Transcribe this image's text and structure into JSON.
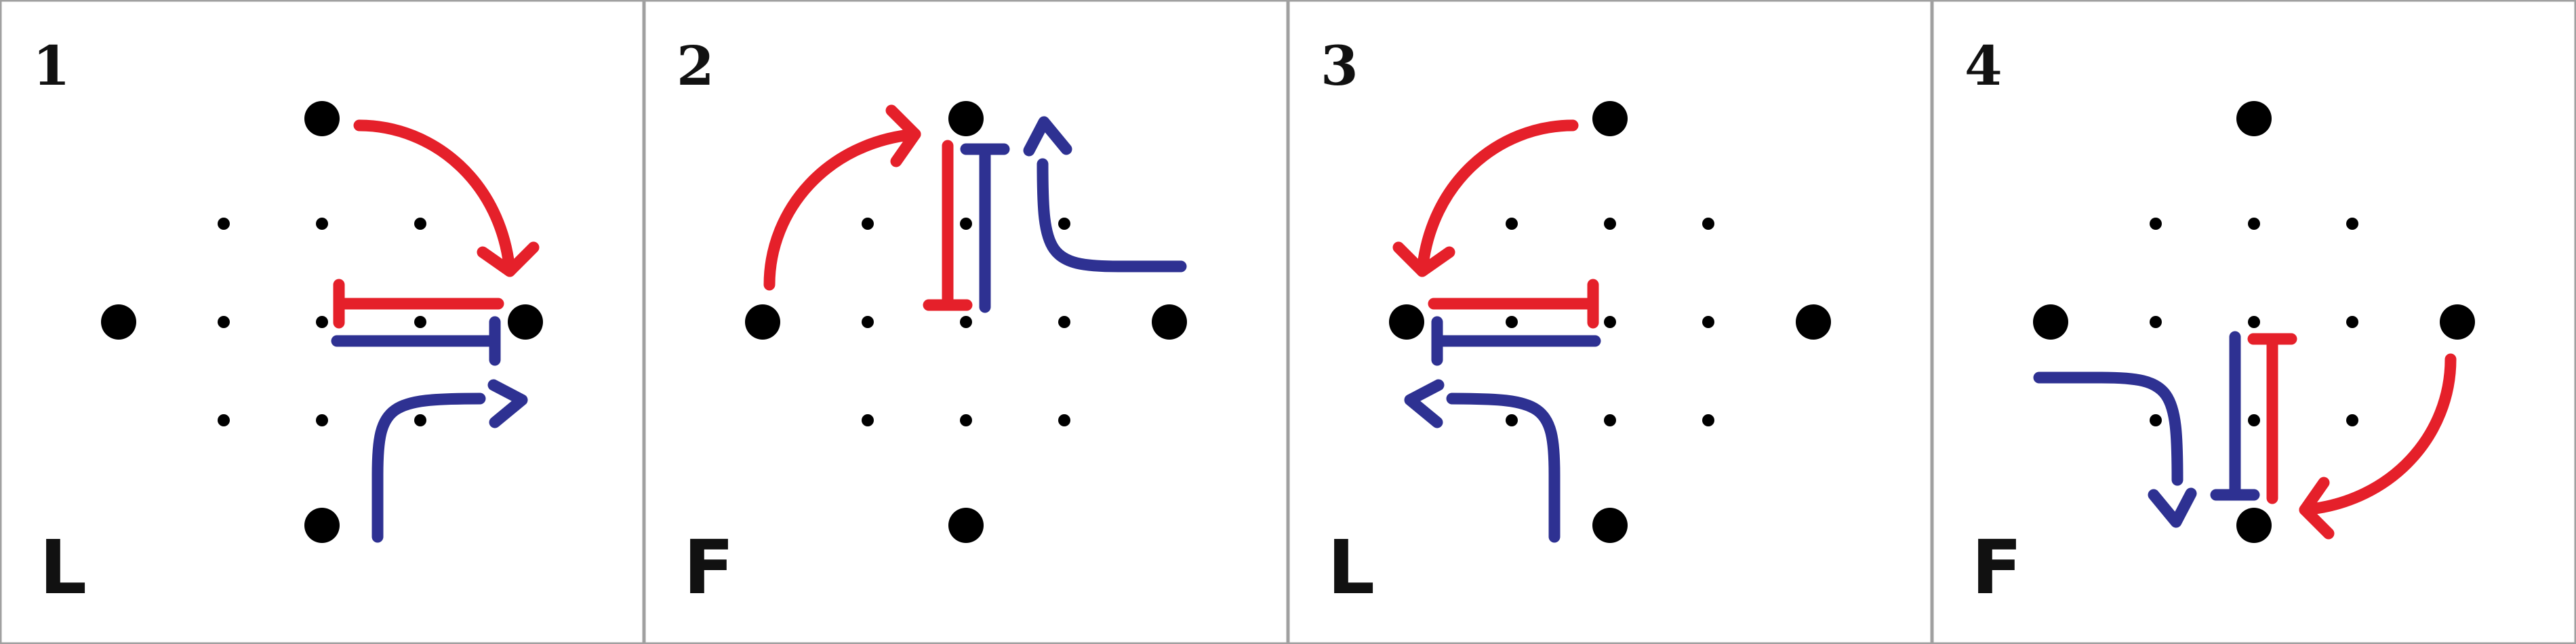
{
  "colors": {
    "red": "#e5202a",
    "blue": "#2e3192",
    "dot": "#000000",
    "border": "#a0a0a0",
    "background": "#ffffff"
  },
  "panels": [
    {
      "number": "1",
      "letter": "L"
    },
    {
      "number": "2",
      "letter": "F"
    },
    {
      "number": "3",
      "letter": "L"
    },
    {
      "number": "4",
      "letter": "F"
    }
  ]
}
